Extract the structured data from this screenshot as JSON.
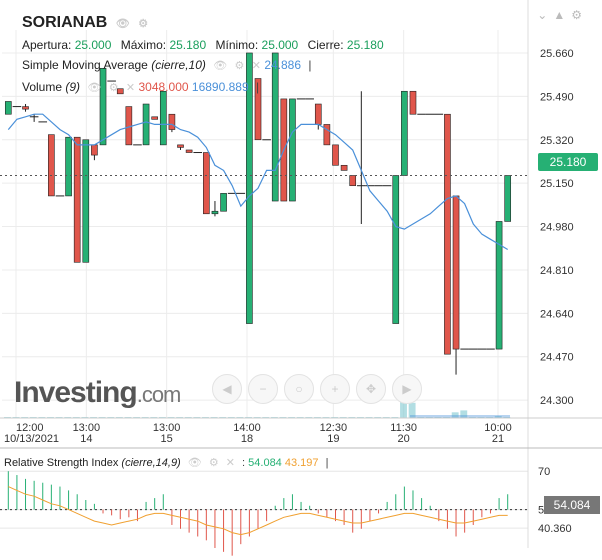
{
  "instrument": {
    "name": "SORIANAB"
  },
  "ohlc": {
    "open_label": "Apertura:",
    "open": "25.000",
    "high_label": "Máximo:",
    "high": "25.180",
    "low_label": "Mínimo:",
    "low": "25.000",
    "close_label": "Cierre:",
    "close": "25.180"
  },
  "sma": {
    "label": "Simple Moving Average",
    "params": "(cierre,10)",
    "value": "24.886"
  },
  "volume": {
    "label": "Volume",
    "params": "(9)",
    "value1": "3048.000",
    "value2": "16890.889"
  },
  "rsi": {
    "label": "Relative Strength Index",
    "params": "(cierre,14,9)",
    "value1": "54.084",
    "value2": "43.197",
    "badge": "54.084"
  },
  "last_price_badge": "25.180",
  "watermark": {
    "brand": "Investing",
    "suffix": ".com"
  },
  "colors": {
    "up": "#26b074",
    "down": "#e0564b",
    "sma": "#4a90d9",
    "rsi_signal": "#f0a030",
    "grid": "#ececec"
  },
  "chart_data": {
    "type": "candlestick",
    "price_axis": {
      "ticks": [
        "25.660",
        "25.490",
        "25.320",
        "25.150",
        "24.980",
        "24.810",
        "24.640",
        "24.470",
        "24.300"
      ],
      "range": [
        24.23,
        25.75
      ]
    },
    "time_axis": [
      {
        "time": "12:00",
        "date": "10/13/2021"
      },
      {
        "time": "13:00",
        "date": "14"
      },
      {
        "time": "13:00",
        "date": "15"
      },
      {
        "time": "14:00",
        "date": "18"
      },
      {
        "time": "12:30",
        "date": "19"
      },
      {
        "time": "11:30",
        "date": "20"
      },
      {
        "time": "10:00",
        "date": "21"
      }
    ],
    "candles": [
      {
        "o": 25.42,
        "h": 25.47,
        "l": 25.42,
        "c": 25.47
      },
      {
        "o": 25.45,
        "h": 25.45,
        "l": 25.45,
        "c": 25.45
      },
      {
        "o": 25.45,
        "h": 25.46,
        "l": 25.43,
        "c": 25.44
      },
      {
        "o": 25.41,
        "h": 25.42,
        "l": 25.39,
        "c": 25.41
      },
      {
        "o": 25.39,
        "h": 25.39,
        "l": 25.39,
        "c": 25.39
      },
      {
        "o": 25.34,
        "h": 25.34,
        "l": 25.1,
        "c": 25.1
      },
      {
        "o": 25.1,
        "h": 25.1,
        "l": 25.1,
        "c": 25.1
      },
      {
        "o": 25.1,
        "h": 25.33,
        "l": 25.1,
        "c": 25.33
      },
      {
        "o": 25.33,
        "h": 25.33,
        "l": 24.84,
        "c": 24.84
      },
      {
        "o": 24.84,
        "h": 25.32,
        "l": 24.84,
        "c": 25.32
      },
      {
        "o": 25.3,
        "h": 25.3,
        "l": 25.24,
        "c": 25.26
      },
      {
        "o": 25.3,
        "h": 25.6,
        "l": 25.3,
        "c": 25.6
      },
      {
        "o": 25.55,
        "h": 25.55,
        "l": 25.55,
        "c": 25.55
      },
      {
        "o": 25.52,
        "h": 25.52,
        "l": 25.5,
        "c": 25.5
      },
      {
        "o": 25.45,
        "h": 25.45,
        "l": 25.3,
        "c": 25.3
      },
      {
        "o": 25.3,
        "h": 25.3,
        "l": 25.3,
        "c": 25.3
      },
      {
        "o": 25.3,
        "h": 25.46,
        "l": 25.3,
        "c": 25.46
      },
      {
        "o": 25.41,
        "h": 25.41,
        "l": 25.4,
        "c": 25.4
      },
      {
        "o": 25.3,
        "h": 25.51,
        "l": 25.3,
        "c": 25.51
      },
      {
        "o": 25.42,
        "h": 25.42,
        "l": 25.35,
        "c": 25.36
      },
      {
        "o": 25.3,
        "h": 25.3,
        "l": 25.28,
        "c": 25.29
      },
      {
        "o": 25.28,
        "h": 25.28,
        "l": 25.27,
        "c": 25.27
      },
      {
        "o": 25.27,
        "h": 25.27,
        "l": 25.27,
        "c": 25.27
      },
      {
        "o": 25.27,
        "h": 25.27,
        "l": 25.03,
        "c": 25.03
      },
      {
        "o": 25.03,
        "h": 25.08,
        "l": 25.02,
        "c": 25.04
      },
      {
        "o": 25.04,
        "h": 25.11,
        "l": 25.04,
        "c": 25.11
      },
      {
        "o": 25.11,
        "h": 25.11,
        "l": 25.11,
        "c": 25.11
      },
      {
        "o": 25.11,
        "h": 25.11,
        "l": 25.11,
        "c": 25.11
      },
      {
        "o": 24.6,
        "h": 25.66,
        "l": 24.6,
        "c": 25.66
      },
      {
        "o": 25.56,
        "h": 25.56,
        "l": 25.32,
        "c": 25.32
      },
      {
        "o": 25.32,
        "h": 25.32,
        "l": 25.32,
        "c": 25.32
      },
      {
        "o": 25.08,
        "h": 25.66,
        "l": 25.08,
        "c": 25.66
      },
      {
        "o": 25.48,
        "h": 25.48,
        "l": 25.08,
        "c": 25.08
      },
      {
        "o": 25.08,
        "h": 25.48,
        "l": 25.08,
        "c": 25.48
      },
      {
        "o": 25.48,
        "h": 25.48,
        "l": 25.48,
        "c": 25.48
      },
      {
        "o": 25.48,
        "h": 25.48,
        "l": 25.48,
        "c": 25.48
      },
      {
        "o": 25.46,
        "h": 25.46,
        "l": 25.36,
        "c": 25.38
      },
      {
        "o": 25.38,
        "h": 25.38,
        "l": 25.3,
        "c": 25.3
      },
      {
        "o": 25.3,
        "h": 25.3,
        "l": 25.22,
        "c": 25.22
      },
      {
        "o": 25.22,
        "h": 25.22,
        "l": 25.2,
        "c": 25.2
      },
      {
        "o": 25.18,
        "h": 25.18,
        "l": 25.14,
        "c": 25.14
      },
      {
        "o": 25.14,
        "h": 25.51,
        "l": 24.99,
        "c": 25.14
      },
      {
        "o": 25.14,
        "h": 25.14,
        "l": 25.14,
        "c": 25.14
      },
      {
        "o": 25.14,
        "h": 25.14,
        "l": 25.14,
        "c": 25.14
      },
      {
        "o": 25.14,
        "h": 25.14,
        "l": 25.14,
        "c": 25.14
      },
      {
        "o": 24.6,
        "h": 25.18,
        "l": 24.6,
        "c": 25.18
      },
      {
        "o": 25.18,
        "h": 25.51,
        "l": 25.18,
        "c": 25.51
      },
      {
        "o": 25.51,
        "h": 25.51,
        "l": 25.42,
        "c": 25.42
      },
      {
        "o": 25.42,
        "h": 25.42,
        "l": 25.42,
        "c": 25.42
      },
      {
        "o": 25.42,
        "h": 25.42,
        "l": 25.42,
        "c": 25.42
      },
      {
        "o": 25.42,
        "h": 25.42,
        "l": 25.42,
        "c": 25.42
      },
      {
        "o": 25.42,
        "h": 25.42,
        "l": 24.48,
        "c": 24.48
      },
      {
        "o": 25.1,
        "h": 25.1,
        "l": 24.4,
        "c": 24.5
      },
      {
        "o": 24.5,
        "h": 24.5,
        "l": 24.5,
        "c": 24.5
      },
      {
        "o": 24.5,
        "h": 24.5,
        "l": 24.5,
        "c": 24.5
      },
      {
        "o": 24.5,
        "h": 24.5,
        "l": 24.5,
        "c": 24.5
      },
      {
        "o": 24.5,
        "h": 24.5,
        "l": 24.5,
        "c": 24.5
      },
      {
        "o": 24.5,
        "h": 25.0,
        "l": 24.5,
        "c": 25.0
      },
      {
        "o": 25.0,
        "h": 25.18,
        "l": 25.0,
        "c": 25.18
      }
    ],
    "sma": [
      25.36,
      25.4,
      25.41,
      25.42,
      25.42,
      25.39,
      25.36,
      25.34,
      25.3,
      25.3,
      25.3,
      25.32,
      25.34,
      25.36,
      25.37,
      25.38,
      25.39,
      25.38,
      25.38,
      25.38,
      25.36,
      25.35,
      25.33,
      25.29,
      25.22,
      25.2,
      25.14,
      25.06,
      25.1,
      25.13,
      25.2,
      25.2,
      25.28,
      25.35,
      25.38,
      25.38,
      25.38,
      25.36,
      25.34,
      25.31,
      25.28,
      25.2,
      25.12,
      25.08,
      25.04,
      24.98,
      24.97,
      24.99,
      25.01,
      25.03,
      25.06,
      25.09,
      25.1,
      25.07,
      24.99,
      24.95,
      24.93,
      24.91,
      24.89
    ],
    "rsi": {
      "ticks": [
        "70",
        "50",
        "40.360"
      ],
      "range": [
        30,
        80
      ],
      "line_value": "54.084"
    }
  }
}
